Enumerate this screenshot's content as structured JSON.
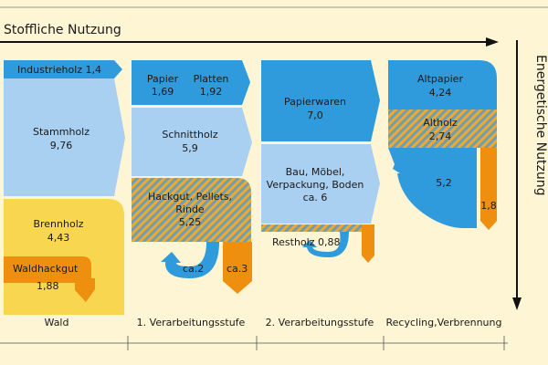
{
  "titles": {
    "material_use": "Stoffliche Nutzung",
    "energy_use": "Energetische Nutzung"
  },
  "stages": {
    "forest": "Wald",
    "first": "1. Verarbeitungsstufe",
    "second": "2. Verarbeitungsstufe",
    "third": "Recycling,Verbrennung"
  },
  "flows": {
    "industrieholz": "Industrieholz 1,4",
    "stammholz_name": "Stammholz",
    "stammholz_value": "9,76",
    "brennholz_name": "Brennholz",
    "brennholz_value": "4,43",
    "waldhackgut_name": "Waldhackgut",
    "waldhackgut_value": "1,88",
    "papier_name": "Papier",
    "papier_value": "1,69",
    "platten_name": "Platten",
    "platten_value": "1,92",
    "schnittholz_name": "Schnittholz",
    "schnittholz_value": "5,9",
    "hackgut_line1": "Hackgut, Pellets,",
    "hackgut_line2": "Rinde",
    "hackgut_value": "5,25",
    "ca2": "ca.2",
    "ca3": "ca.3",
    "papierwaren_name": "Papierwaren",
    "papierwaren_value": "7,0",
    "bau_line1": "Bau, Möbel,",
    "bau_line2": "Verpackung, Boden",
    "bau_value": "ca. 6",
    "restholz": "Restholz 0,88",
    "altpapier_name": "Altpapier",
    "altpapier_value": "4,24",
    "altholz_name": "Altholz",
    "altholz_value": "2,74",
    "recycling_value": "5,2",
    "value_18": "1,8"
  },
  "colors": {
    "background": "#fdf5d3",
    "dark_blue": "#2f9bdc",
    "light_blue": "#a9cff1",
    "yellow": "#f9d64f",
    "orange": "#ef8f10",
    "stripe_a": "#6e9fb0",
    "stripe_b": "#f0a82e"
  }
}
